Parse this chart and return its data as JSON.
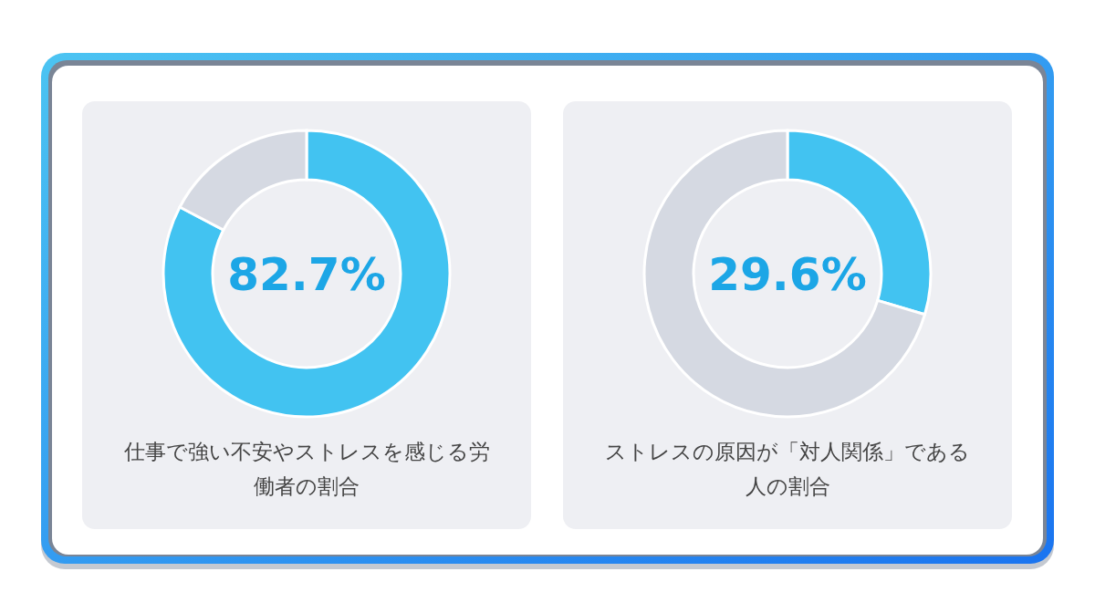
{
  "chart_data": [
    {
      "type": "donut",
      "title": "仕事で強い不安やストレスを感じる労働者の割合",
      "categories": [
        null,
        null
      ],
      "values": [
        82.7,
        17.3
      ],
      "colors": [
        "#42c3f1",
        "#d5d9e2"
      ],
      "annotations": [
        "82.7%"
      ]
    },
    {
      "type": "donut",
      "title": "ストレスの原因が「対人関係」である人の割合",
      "categories": [
        null,
        null
      ],
      "values": [
        29.6,
        70.4
      ],
      "colors": [
        "#42c3f1",
        "#d5d9e2"
      ],
      "annotations": [
        "29.6%"
      ]
    }
  ]
}
